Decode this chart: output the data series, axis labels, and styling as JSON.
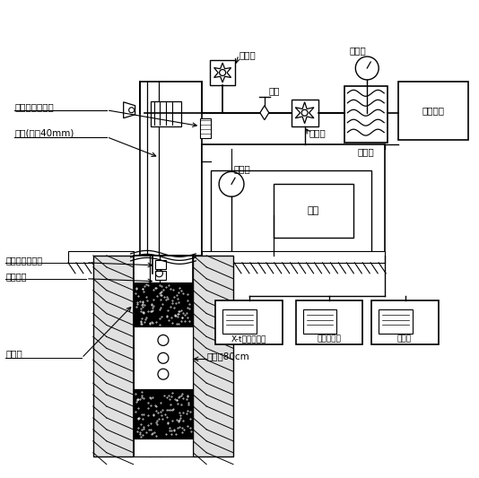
{
  "bg_color": "#ffffff",
  "labels": {
    "liuliang_ji_top": "流量计",
    "fa_men": "阀门",
    "ya_li_biao_top": "压力表",
    "gao_ya_shui_beng": "高压水泵",
    "di_mian_ya_li_chuan_gan_qi": "地面压力传感器",
    "gang_guan": "钢管(内径40mm)",
    "liu_liang_ji_mid": "流量计",
    "xu_neng_qi": "蓄能器",
    "ya_li_biao_mid": "压力表",
    "shui_beng": "水泵",
    "jing_xia_ya_li": "井下压力传感器",
    "jing_xia_fa_men": "井下阀门",
    "feng_ge_qi": "封隔器",
    "shi_yan_duan": "试验段80cm",
    "xt_jilu": "X-t数据记录仪",
    "ci_dai_jilu": "磁带记录仪",
    "ji_suan_ji": "计算机"
  }
}
